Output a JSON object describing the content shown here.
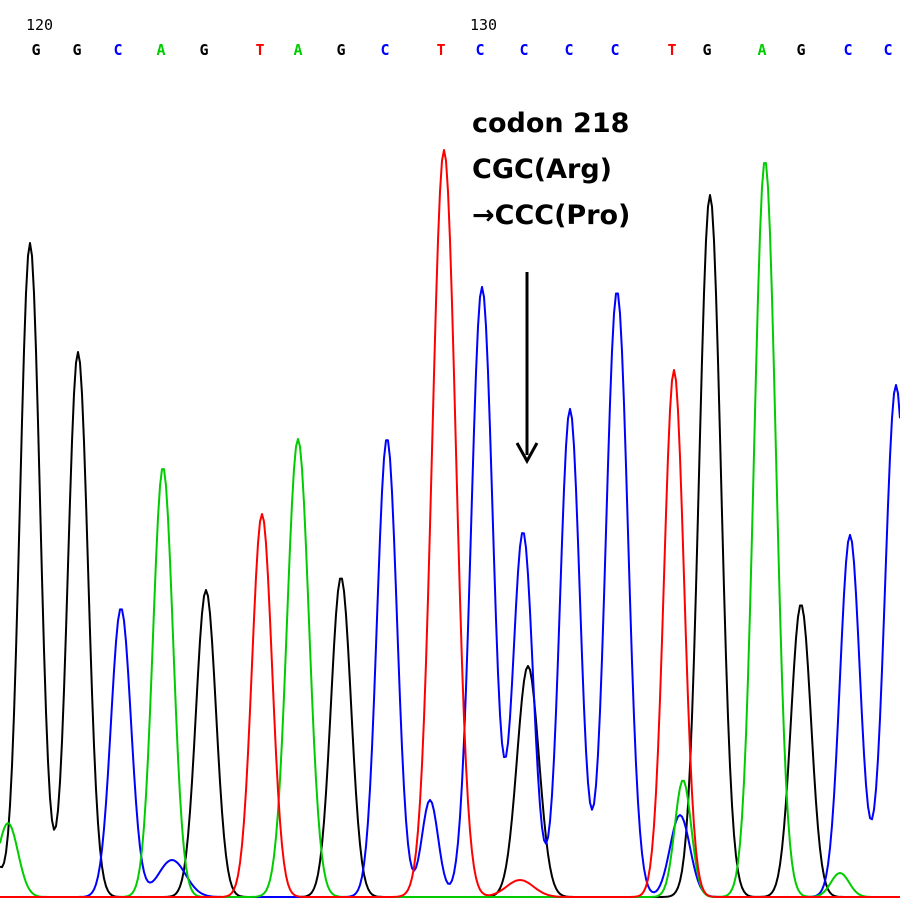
{
  "colors": {
    "A": "#00cc00",
    "C": "#0000ff",
    "G": "#000000",
    "T": "#ff0000"
  },
  "position_labels": [
    {
      "text": "120",
      "base_index": 0
    },
    {
      "text": "130",
      "base_index": 10
    }
  ],
  "bases": [
    "G",
    "G",
    "C",
    "A",
    "G",
    "T",
    "A",
    "G",
    "C",
    "T",
    "C",
    "C",
    "C",
    "C",
    "T",
    "G",
    "A",
    "G",
    "C",
    "C"
  ],
  "annotation": {
    "lines": [
      "codon 218",
      "CGC(Arg)",
      "→CCC(Pro)"
    ],
    "arrow": "down-arrow"
  }
}
